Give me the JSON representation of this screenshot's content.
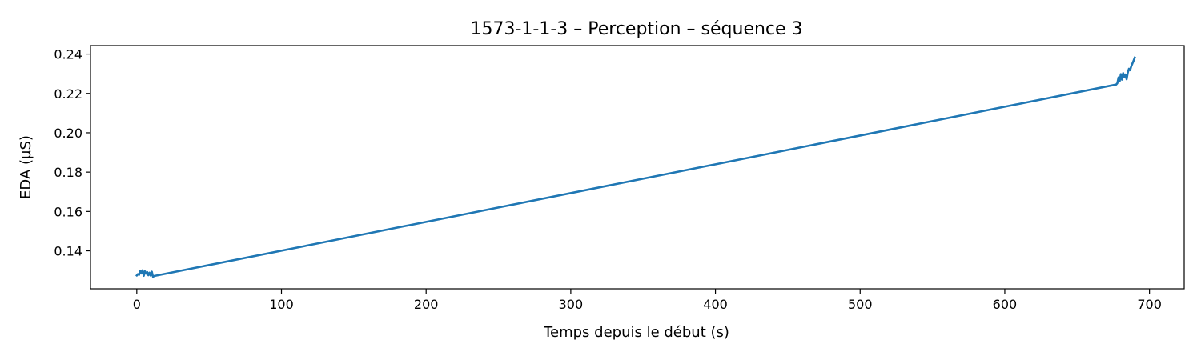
{
  "chart_data": {
    "type": "line",
    "title": "1573-1-1-3 – Perception – séquence 3",
    "xlabel": "Temps depuis le début (s)",
    "ylabel": "EDA (µS)",
    "xlim": [
      -32,
      724
    ],
    "ylim": [
      0.1207,
      0.2443
    ],
    "xticks": [
      0,
      100,
      200,
      300,
      400,
      500,
      600,
      700
    ],
    "yticks": [
      0.14,
      0.16,
      0.18,
      0.2,
      0.22,
      0.24
    ],
    "xtick_labels": [
      "0",
      "100",
      "200",
      "300",
      "400",
      "500",
      "600",
      "700"
    ],
    "ytick_labels": [
      "0.14",
      "0.16",
      "0.18",
      "0.20",
      "0.22",
      "0.24"
    ],
    "grid": false,
    "series": [
      {
        "color": "#1f77b4",
        "x": [
          0,
          0.8,
          1.6,
          2.4,
          3.2,
          4.0,
          4.8,
          5.6,
          6.4,
          7.2,
          8.0,
          8.8,
          9.6,
          10.4,
          11.2,
          12.0,
          677,
          677.8,
          678.6,
          679.4,
          680.2,
          681.0,
          681.8,
          682.6,
          683.4,
          684.2,
          685.0,
          685.8,
          686.6,
          687.4,
          688.2,
          689.0,
          689.8
        ],
        "y": [
          0.1275,
          0.1282,
          0.1278,
          0.1298,
          0.1285,
          0.1301,
          0.1273,
          0.1296,
          0.1284,
          0.1292,
          0.1276,
          0.1289,
          0.1274,
          0.1294,
          0.1268,
          0.1272,
          0.2245,
          0.2252,
          0.2281,
          0.2262,
          0.2298,
          0.227,
          0.2303,
          0.2284,
          0.2296,
          0.2272,
          0.2306,
          0.2325,
          0.2318,
          0.2338,
          0.2352,
          0.2366,
          0.2382
        ]
      }
    ]
  }
}
